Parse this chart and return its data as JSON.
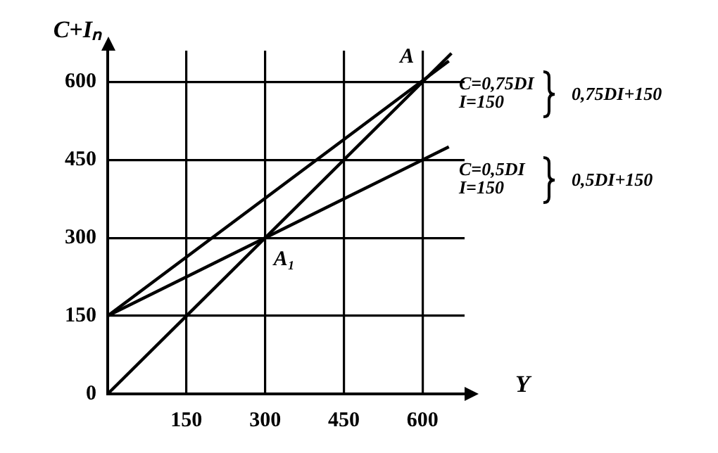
{
  "chart_data": {
    "type": "line",
    "xlabel": "Y",
    "ylabel": "C+Iₙ",
    "series": [
      {
        "color": "#000000",
        "x": [
          0,
          655
        ],
        "values": [
          0,
          655
        ]
      },
      {
        "name": "0,75DI+150",
        "color": "#000000",
        "x": [
          0,
          650
        ],
        "values": [
          150,
          640
        ]
      },
      {
        "name": "0,5DI+150",
        "color": "#000000",
        "x": [
          0,
          650
        ],
        "values": [
          150,
          475
        ]
      }
    ],
    "xlim": [
      0,
      680
    ],
    "ylim": [
      0,
      660
    ],
    "xticks": [
      150,
      300,
      450,
      600
    ],
    "yticks": [
      0,
      150,
      300,
      450,
      600
    ],
    "grid": true,
    "legend": false,
    "marker": "none",
    "line_style": "solid",
    "annotations": [
      {
        "text": "A",
        "x": 600,
        "y": 600
      },
      {
        "text": "A₁",
        "x": 300,
        "y": 300
      },
      "C=0,75DI",
      "I=150",
      "C=0,5DI",
      "I=150"
    ]
  }
}
